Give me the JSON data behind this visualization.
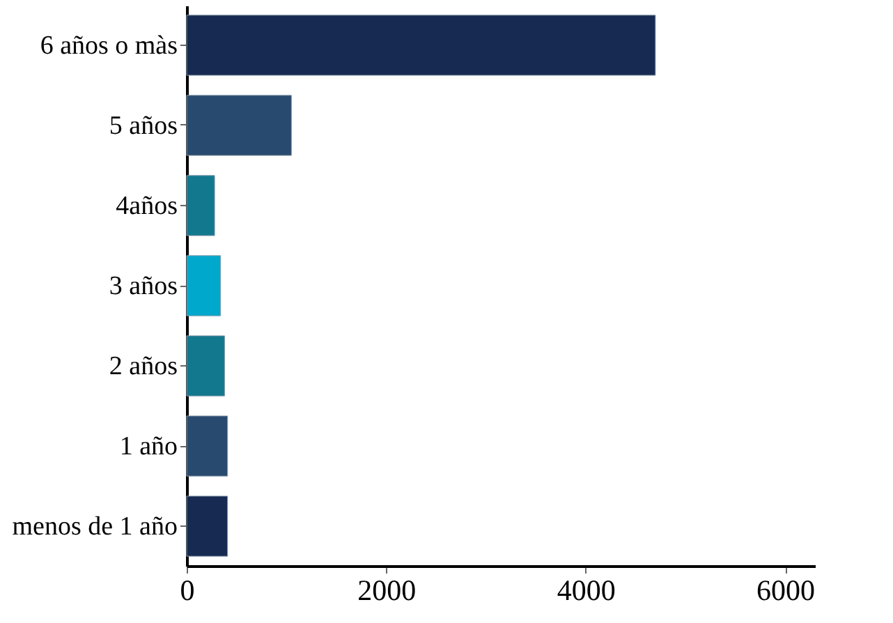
{
  "chart_data": {
    "type": "bar",
    "orientation": "horizontal",
    "categories": [
      "6 años o màs",
      "5 años",
      "4años",
      "3 años",
      "2 años",
      "1 año",
      "menos de 1 año"
    ],
    "values": [
      4700,
      1050,
      280,
      340,
      380,
      410,
      410
    ],
    "colors": [
      "#172a52",
      "#284a6e",
      "#12788e",
      "#00a8cc",
      "#12788e",
      "#284a6e",
      "#172a52"
    ],
    "xlim": [
      0,
      6300
    ],
    "xticks": [
      0,
      2000,
      4000,
      6000
    ],
    "grid": false
  }
}
